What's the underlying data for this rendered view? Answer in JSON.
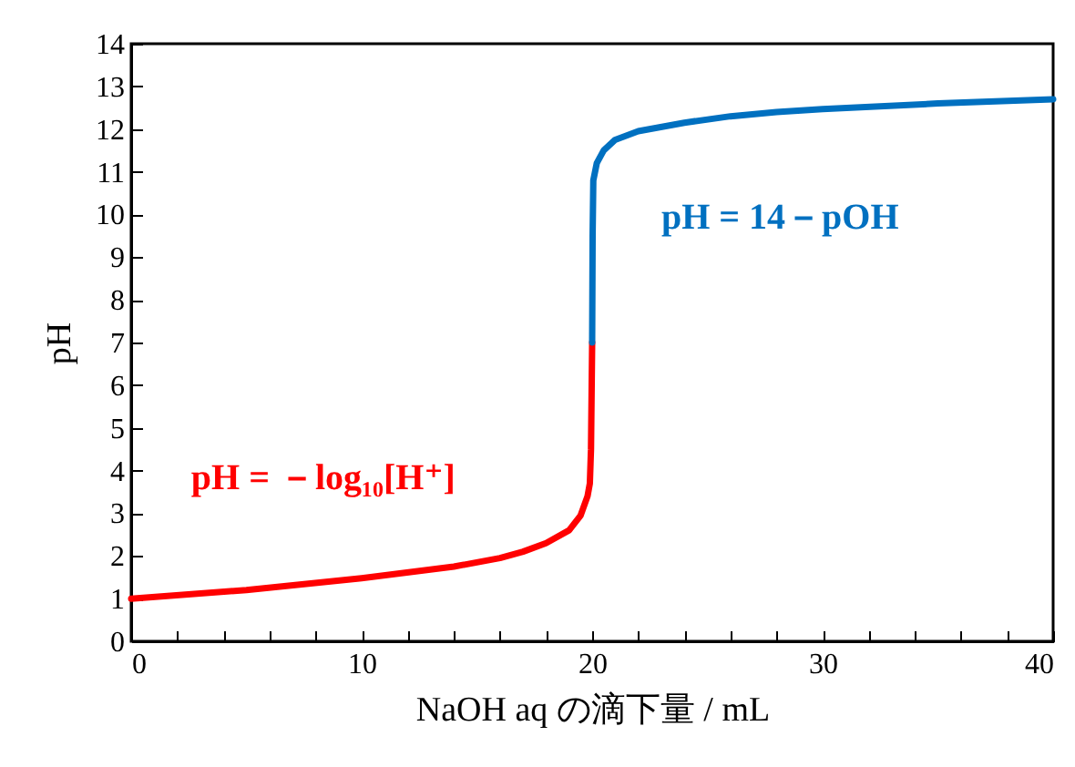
{
  "chart_data": {
    "type": "line",
    "xlabel": "NaOH aq の滴下量 / mL",
    "ylabel": "pH",
    "xlim": [
      0,
      40
    ],
    "ylim": [
      0,
      14
    ],
    "xticks": [
      0,
      {
        "value": 2,
        "label": null
      },
      {
        "value": 4,
        "label": null
      },
      {
        "value": 6,
        "label": null
      },
      {
        "value": 8,
        "label": null
      },
      10,
      {
        "value": 12,
        "label": null
      },
      {
        "value": 14,
        "label": null
      },
      {
        "value": 16,
        "label": null
      },
      {
        "value": 18,
        "label": null
      },
      20,
      {
        "value": 22,
        "label": null
      },
      {
        "value": 24,
        "label": null
      },
      {
        "value": 26,
        "label": null
      },
      {
        "value": 28,
        "label": null
      },
      30,
      {
        "value": 32,
        "label": null
      },
      {
        "value": 34,
        "label": null
      },
      {
        "value": 36,
        "label": null
      },
      {
        "value": 38,
        "label": null
      },
      40
    ],
    "yticks": [
      0,
      1,
      2,
      3,
      4,
      5,
      6,
      7,
      8,
      9,
      10,
      11,
      12,
      13,
      14
    ],
    "grid": false,
    "legend": false,
    "marker": "none",
    "line_style": "solid",
    "series": [
      {
        "name": "pH = －log₁₀[H⁺]",
        "color": "#ff0000",
        "x": [
          0,
          5,
          10,
          14,
          16,
          17,
          18,
          19,
          19.5,
          19.8,
          19.9,
          19.95,
          20
        ],
        "values": [
          1.0,
          1.2,
          1.48,
          1.75,
          1.95,
          2.1,
          2.3,
          2.6,
          2.95,
          3.4,
          3.7,
          4.5,
          7.0
        ]
      },
      {
        "name": "pH = 14－pOH",
        "color": "#0070c0",
        "x": [
          20,
          20.02,
          20.05,
          20.2,
          20.5,
          21,
          22,
          24,
          26,
          28,
          30,
          35,
          40
        ],
        "values": [
          7.0,
          9.5,
          10.8,
          11.2,
          11.5,
          11.75,
          11.95,
          12.15,
          12.3,
          12.4,
          12.47,
          12.6,
          12.7
        ]
      }
    ]
  }
}
